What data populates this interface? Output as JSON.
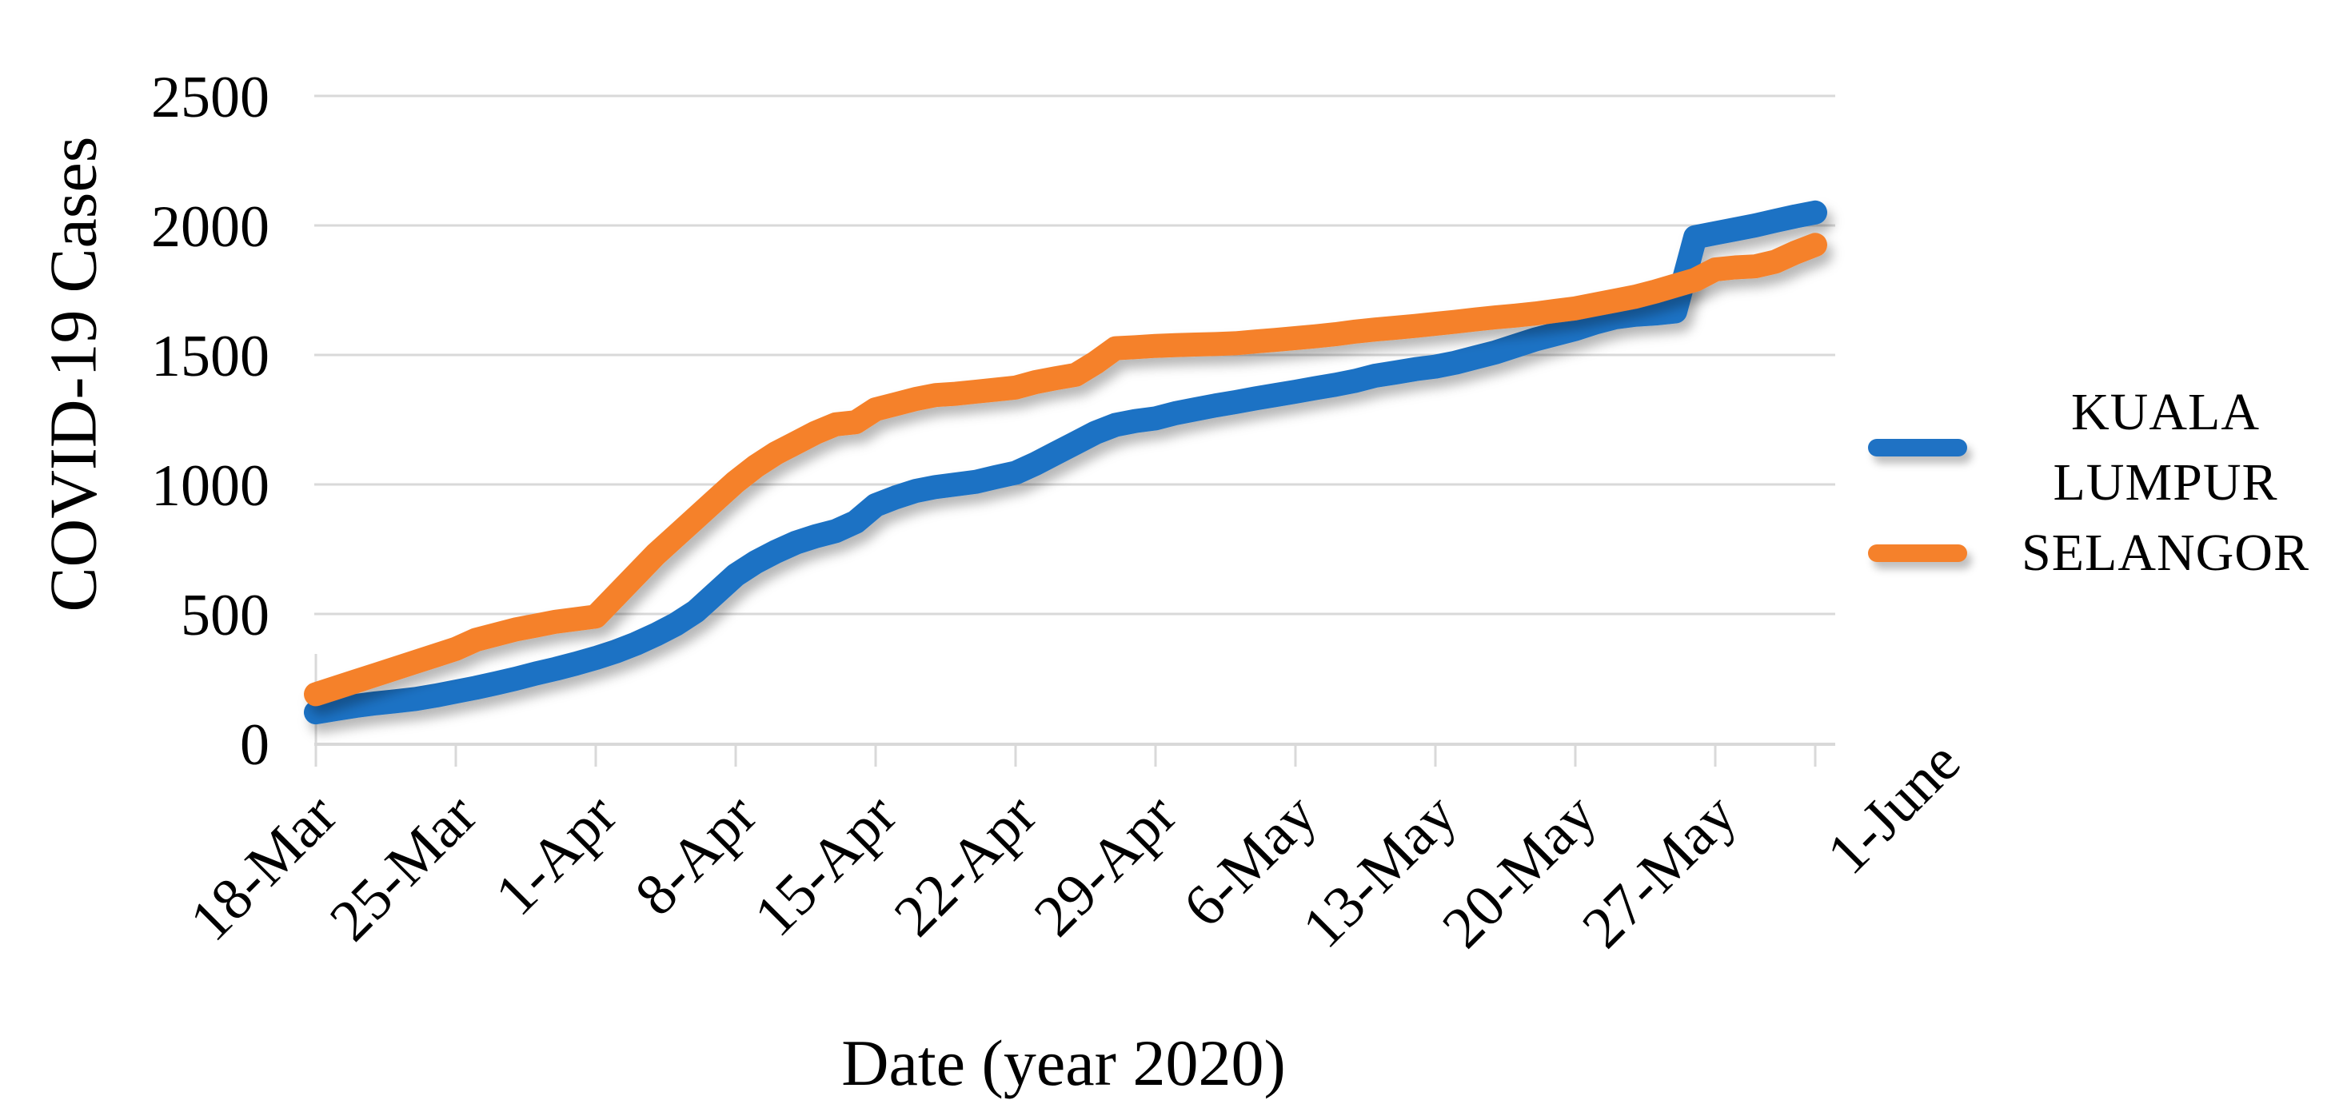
{
  "chart": {
    "ylabel": "COVID-19 Cases",
    "xlabel": "Date (year 2020)",
    "legend": [
      {
        "label": "KUALA LUMPUR"
      },
      {
        "label": "SELANGOR"
      }
    ]
  },
  "colors": {
    "background": "#FFFFFF",
    "grid": "#D9D9D9",
    "axis": "#D9D9D9",
    "text": "#000000",
    "kuala_lumpur": "#1F72C4",
    "selangor": "#F5812B"
  },
  "chart_data": {
    "type": "line",
    "title": "",
    "xlabel": "Date (year 2020)",
    "ylabel": "COVID-19 Cases",
    "ylim": [
      0,
      2500
    ],
    "yticks": [
      0,
      500,
      1000,
      1500,
      2000,
      2500
    ],
    "grid": "horizontal",
    "legend_position": "right",
    "x_tick_labels": [
      "18-Mar",
      "25-Mar",
      "1-Apr",
      "8-Apr",
      "15-Apr",
      "22-Apr",
      "29-Apr",
      "6-May",
      "13-May",
      "20-May",
      "27-May",
      "1-June"
    ],
    "x_tick_day_index": [
      0,
      7,
      14,
      21,
      28,
      35,
      42,
      49,
      56,
      63,
      70,
      75
    ],
    "x": [
      "18-Mar",
      "19-Mar",
      "20-Mar",
      "21-Mar",
      "22-Mar",
      "23-Mar",
      "24-Mar",
      "25-Mar",
      "26-Mar",
      "27-Mar",
      "28-Mar",
      "29-Mar",
      "30-Mar",
      "31-Mar",
      "1-Apr",
      "2-Apr",
      "3-Apr",
      "4-Apr",
      "5-Apr",
      "6-Apr",
      "7-Apr",
      "8-Apr",
      "9-Apr",
      "10-Apr",
      "11-Apr",
      "12-Apr",
      "13-Apr",
      "14-Apr",
      "15-Apr",
      "16-Apr",
      "17-Apr",
      "18-Apr",
      "19-Apr",
      "20-Apr",
      "21-Apr",
      "22-Apr",
      "23-Apr",
      "24-Apr",
      "25-Apr",
      "26-Apr",
      "27-Apr",
      "28-Apr",
      "29-Apr",
      "30-Apr",
      "1-May",
      "2-May",
      "3-May",
      "4-May",
      "5-May",
      "6-May",
      "7-May",
      "8-May",
      "9-May",
      "10-May",
      "11-May",
      "12-May",
      "13-May",
      "14-May",
      "15-May",
      "16-May",
      "17-May",
      "18-May",
      "19-May",
      "20-May",
      "21-May",
      "22-May",
      "23-May",
      "24-May",
      "25-May",
      "26-May",
      "27-May",
      "28-May",
      "29-May",
      "30-May",
      "31-May",
      "1-June"
    ],
    "series": [
      {
        "name": "KUALA LUMPUR",
        "color": "#1F72C4",
        "values": [
          120,
          133,
          145,
          155,
          163,
          172,
          185,
          200,
          215,
          232,
          250,
          270,
          288,
          308,
          330,
          355,
          385,
          420,
          460,
          510,
          580,
          650,
          700,
          740,
          775,
          800,
          820,
          855,
          920,
          950,
          975,
          990,
          1000,
          1010,
          1028,
          1045,
          1080,
          1120,
          1160,
          1200,
          1230,
          1245,
          1255,
          1275,
          1290,
          1305,
          1318,
          1332,
          1345,
          1358,
          1372,
          1385,
          1400,
          1420,
          1432,
          1445,
          1455,
          1470,
          1490,
          1510,
          1535,
          1560,
          1580,
          1600,
          1625,
          1645,
          1655,
          1660,
          1668,
          1955,
          1970,
          1985,
          2000,
          2018,
          2035,
          2050
        ]
      },
      {
        "name": "SELANGOR",
        "color": "#F5812B",
        "values": [
          190,
          215,
          240,
          265,
          290,
          315,
          340,
          365,
          400,
          420,
          440,
          455,
          470,
          480,
          490,
          570,
          650,
          730,
          800,
          870,
          940,
          1010,
          1070,
          1120,
          1160,
          1200,
          1232,
          1240,
          1290,
          1310,
          1330,
          1345,
          1350,
          1358,
          1366,
          1374,
          1395,
          1410,
          1423,
          1470,
          1526,
          1530,
          1535,
          1538,
          1540,
          1542,
          1545,
          1552,
          1558,
          1565,
          1572,
          1580,
          1590,
          1598,
          1605,
          1612,
          1620,
          1628,
          1637,
          1645,
          1652,
          1660,
          1670,
          1680,
          1695,
          1710,
          1725,
          1745,
          1768,
          1790,
          1830,
          1838,
          1842,
          1860,
          1895,
          1925
        ]
      }
    ]
  }
}
